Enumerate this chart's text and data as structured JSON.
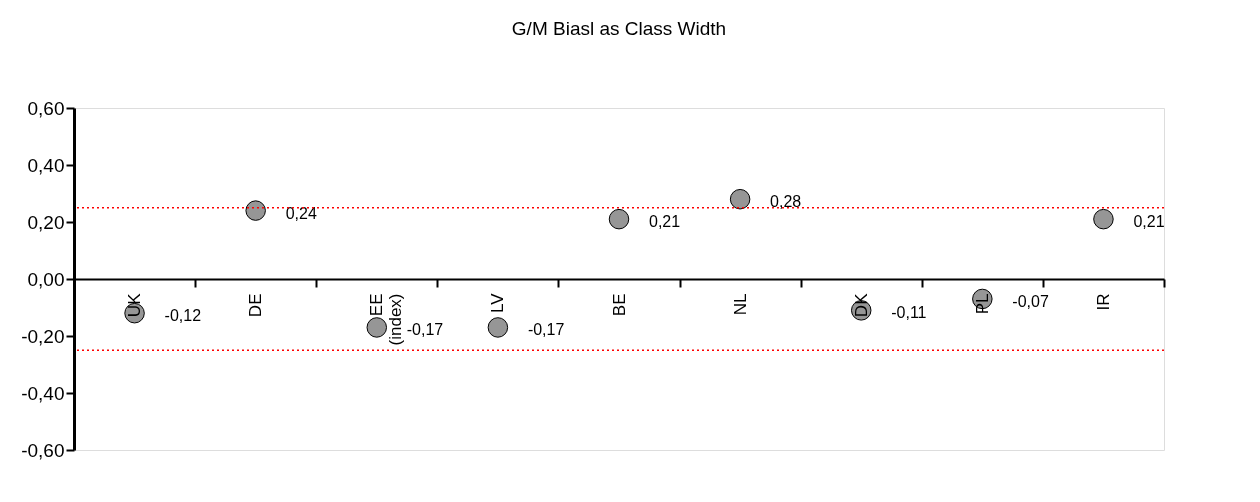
{
  "chart_data": {
    "type": "scatter",
    "title": "G/M Biasl as Class Width",
    "categories": [
      "UK",
      "DE",
      "EE (index)",
      "LV",
      "BE",
      "NL",
      "DK",
      "PL",
      "IR"
    ],
    "series": [
      {
        "color": "#969696",
        "values": [
          -0.12,
          0.24,
          -0.17,
          -0.17,
          0.21,
          0.28,
          -0.11,
          -0.07,
          0.21
        ],
        "value_labels": [
          "-0,12",
          "0,24",
          "-0,17",
          "-0,17",
          "0,21",
          "0,28",
          "-0,11",
          "-0,07",
          "0,21"
        ]
      }
    ],
    "ylim": [
      -0.6,
      0.6
    ],
    "yticks": [
      {
        "value": -0.6,
        "label": "-0,60"
      },
      {
        "value": -0.4,
        "label": "-0,40"
      },
      {
        "value": -0.2,
        "label": "-0,20"
      },
      {
        "value": 0,
        "label": "0,00"
      },
      {
        "value": 0.2,
        "label": "0,20"
      },
      {
        "value": 0.4,
        "label": "0,40"
      },
      {
        "value": 0.6,
        "label": "0,60"
      }
    ],
    "ref_lines": [
      {
        "axis": "y",
        "value": 0.25,
        "color": "#ff0000",
        "line_style": "dotted"
      },
      {
        "axis": "y",
        "value": -0.25,
        "color": "#ff0000",
        "line_style": "dotted"
      }
    ],
    "marker": "circle",
    "grid": false,
    "legend": false
  }
}
